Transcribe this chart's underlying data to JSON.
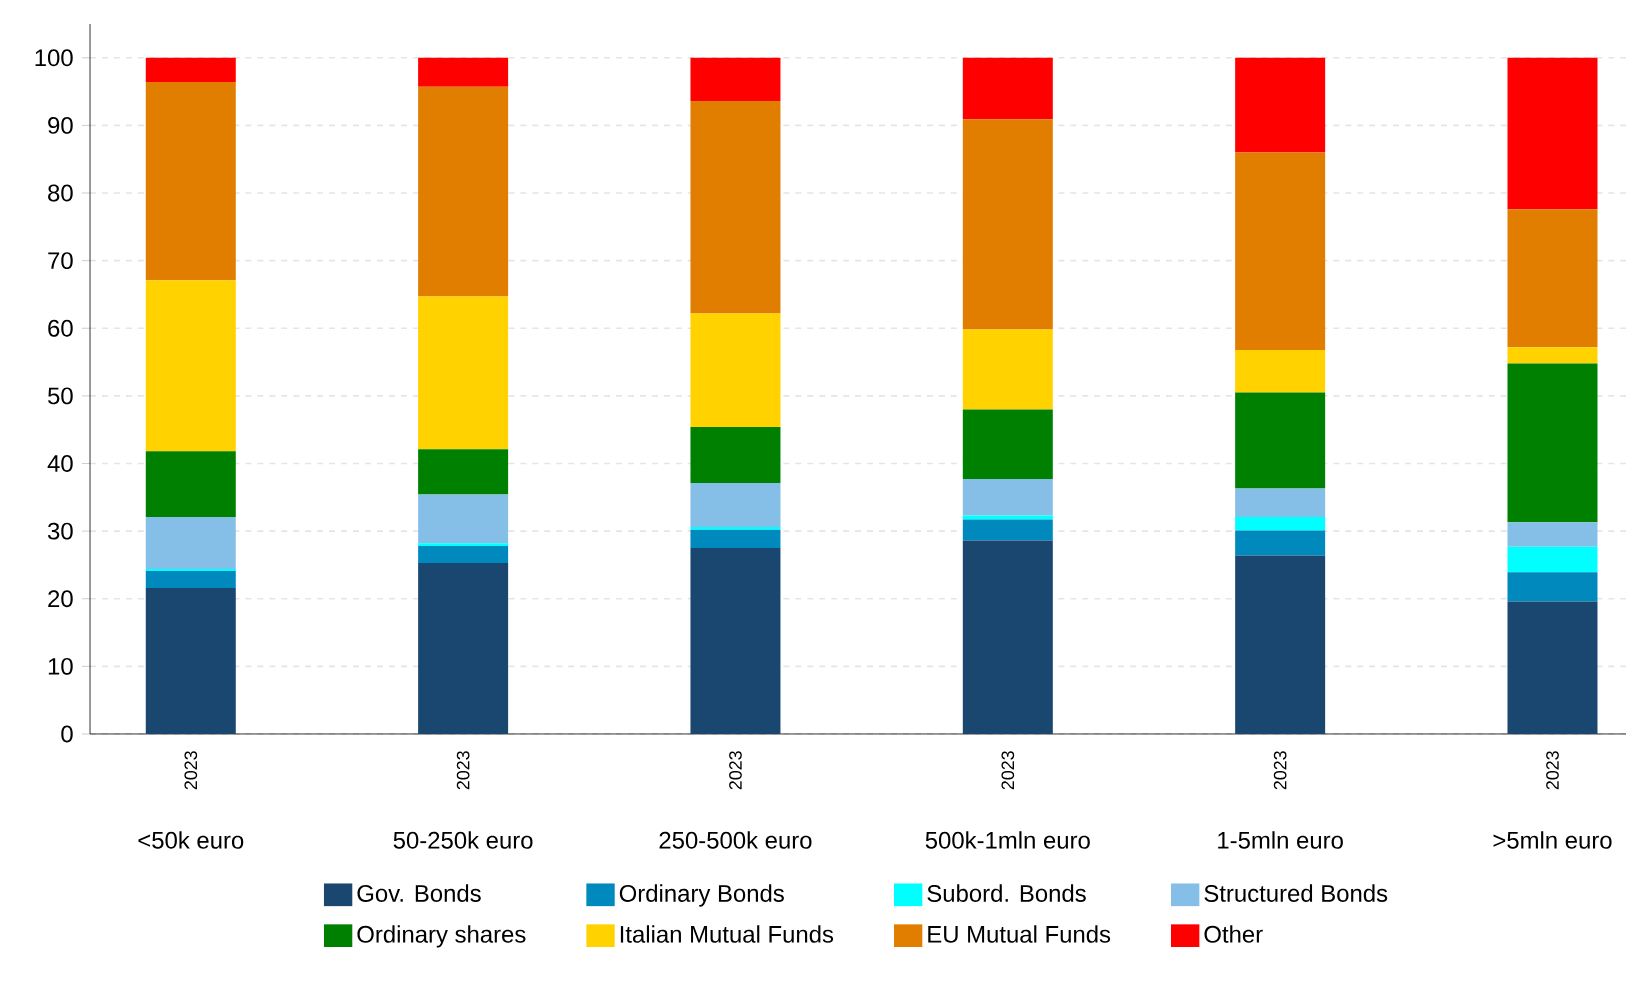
{
  "chart_data": {
    "type": "bar",
    "stacked": true,
    "categories": [
      "2023",
      "2023",
      "2023",
      "2023",
      "2023",
      "2023"
    ],
    "annotations": [
      "<50k euro",
      "50-250k euro",
      "250-500k euro",
      "500k-1mln euro",
      "1-5mln euro",
      ">5mln euro"
    ],
    "ylim": [
      0,
      105
    ],
    "yticks": [
      0,
      10,
      20,
      30,
      40,
      50,
      60,
      70,
      80,
      90,
      100
    ],
    "grid": "y",
    "legend": "bottom",
    "series": [
      {
        "name": "Gov. Bonds",
        "color": "#1a476f",
        "values": [
          21.6,
          25.3,
          27.5,
          28.6,
          26.4,
          19.6
        ]
      },
      {
        "name": "Ordinary Bonds",
        "color": "#0089bd",
        "values": [
          2.5,
          2.5,
          2.7,
          3.1,
          3.7,
          4.3
        ]
      },
      {
        "name": "Subord. Bonds",
        "color": "#00ffff",
        "values": [
          0.3,
          0.4,
          0.4,
          0.6,
          2.0,
          3.8
        ]
      },
      {
        "name": "Structured Bonds",
        "color": "#85bfe8",
        "values": [
          7.7,
          7.2,
          6.5,
          5.4,
          4.2,
          3.6
        ]
      },
      {
        "name": "Ordinary shares",
        "color": "#008000",
        "values": [
          9.7,
          6.7,
          8.3,
          10.3,
          14.2,
          23.5
        ]
      },
      {
        "name": "Italian Mutual Funds",
        "color": "#ffd200",
        "values": [
          25.3,
          22.6,
          16.8,
          11.8,
          6.3,
          2.4
        ]
      },
      {
        "name": "EU Mutual Funds",
        "color": "#e17e00",
        "values": [
          29.3,
          31.0,
          31.4,
          31.1,
          29.2,
          20.4
        ]
      },
      {
        "name": "Other",
        "color": "#ff0000",
        "values": [
          3.6,
          4.3,
          6.4,
          9.1,
          14.0,
          22.4
        ]
      }
    ]
  }
}
